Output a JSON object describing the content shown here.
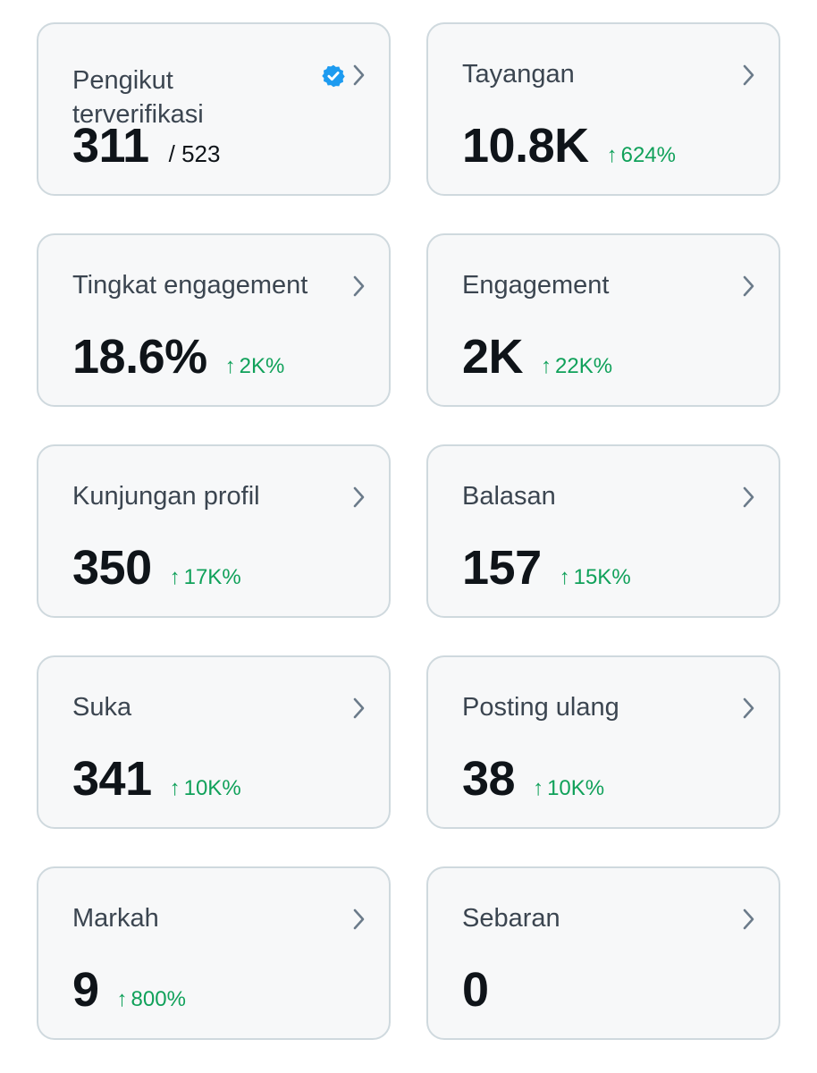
{
  "theme": {
    "card_bg": "#f7f8f9",
    "card_border": "#cfd9de",
    "text_primary": "#0f1419",
    "text_label": "#3b4550",
    "positive": "#10a15a",
    "verified_blue": "#1d9bf0",
    "chevron": "#6b7b8a"
  },
  "icons": {
    "chevron": "chevron-right-icon",
    "verified": "verified-badge-icon",
    "trend": "arrow-up-icon"
  },
  "cards": [
    {
      "label": "Pengikut terverifikasi",
      "value": "311",
      "total": "/ 523",
      "delta": "",
      "verified": true
    },
    {
      "label": "Tayangan",
      "value": "10.8K",
      "total": "",
      "delta": "624%"
    },
    {
      "label": "Tingkat engagement",
      "value": "18.6%",
      "total": "",
      "delta": "2K%"
    },
    {
      "label": "Engagement",
      "value": "2K",
      "total": "",
      "delta": "22K%"
    },
    {
      "label": "Kunjungan profil",
      "value": "350",
      "total": "",
      "delta": "17K%"
    },
    {
      "label": "Balasan",
      "value": "157",
      "total": "",
      "delta": "15K%"
    },
    {
      "label": "Suka",
      "value": "341",
      "total": "",
      "delta": "10K%"
    },
    {
      "label": "Posting ulang",
      "value": "38",
      "total": "",
      "delta": "10K%"
    },
    {
      "label": "Markah",
      "value": "9",
      "total": "",
      "delta": "800%"
    },
    {
      "label": "Sebaran",
      "value": "0",
      "total": "",
      "delta": ""
    }
  ]
}
